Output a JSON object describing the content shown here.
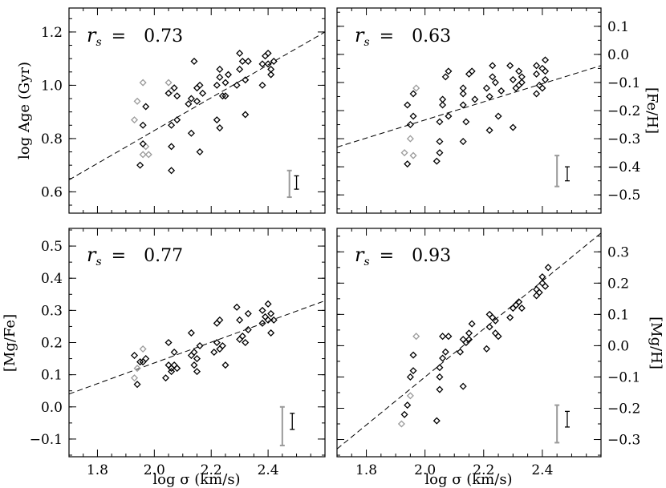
{
  "colors": {
    "primary_points": "#000000",
    "secondary_points": "#9a9a9a",
    "fit_line": "#000000",
    "error_bar_gray": "#9a9a9a"
  },
  "shared": {
    "x_axis_label": "log σ (km/s)",
    "x_ticks": [
      "1.8",
      "2.0",
      "2.2",
      "2.4"
    ],
    "xlim": [
      1.7,
      2.6
    ]
  },
  "chart_data": [
    {
      "type": "scatter",
      "id": "age",
      "rs_symbol": "r",
      "rs_sub": "s",
      "rs_eq": "=",
      "rs_value": "0.73",
      "ylabel_left": "log Age (Gyr)",
      "ylim": [
        0.52,
        1.29
      ],
      "y_ticks": [
        0.6,
        0.8,
        1.0,
        1.2
      ],
      "y_tick_labels": [
        "0.6",
        "0.8",
        "1.0",
        "1.2"
      ],
      "fit": {
        "x0": 1.7,
        "y0": 0.645,
        "x1": 2.6,
        "y1": 1.2
      },
      "gray_points": [
        [
          1.93,
          0.87
        ],
        [
          1.94,
          0.94
        ],
        [
          1.96,
          1.01
        ],
        [
          1.96,
          0.74
        ],
        [
          1.97,
          0.77
        ],
        [
          1.98,
          0.74
        ],
        [
          2.05,
          1.01
        ],
        [
          2.06,
          0.98
        ]
      ],
      "points": [
        [
          1.95,
          0.7
        ],
        [
          1.96,
          0.78
        ],
        [
          1.96,
          0.85
        ],
        [
          1.97,
          0.92
        ],
        [
          2.05,
          0.97
        ],
        [
          2.06,
          0.85
        ],
        [
          2.06,
          0.77
        ],
        [
          2.06,
          0.68
        ],
        [
          2.07,
          0.99
        ],
        [
          2.08,
          0.87
        ],
        [
          2.08,
          0.96
        ],
        [
          2.12,
          0.93
        ],
        [
          2.13,
          0.82
        ],
        [
          2.13,
          0.95
        ],
        [
          2.14,
          1.09
        ],
        [
          2.15,
          0.94
        ],
        [
          2.15,
          0.99
        ],
        [
          2.16,
          0.75
        ],
        [
          2.16,
          1.0
        ],
        [
          2.17,
          0.97
        ],
        [
          2.22,
          1.0
        ],
        [
          2.22,
          0.87
        ],
        [
          2.23,
          0.84
        ],
        [
          2.23,
          1.03
        ],
        [
          2.23,
          1.06
        ],
        [
          2.24,
          0.96
        ],
        [
          2.25,
          1.01
        ],
        [
          2.25,
          0.96
        ],
        [
          2.26,
          1.04
        ],
        [
          2.29,
          1.0
        ],
        [
          2.3,
          1.06
        ],
        [
          2.3,
          1.12
        ],
        [
          2.31,
          1.09
        ],
        [
          2.32,
          1.02
        ],
        [
          2.32,
          0.89
        ],
        [
          2.33,
          1.09
        ],
        [
          2.38,
          1.0
        ],
        [
          2.38,
          1.08
        ],
        [
          2.39,
          1.11
        ],
        [
          2.4,
          1.12
        ],
        [
          2.4,
          1.08
        ],
        [
          2.41,
          1.04
        ],
        [
          2.41,
          1.06
        ],
        [
          2.42,
          1.09
        ]
      ],
      "errorbars": [
        {
          "x": 2.475,
          "lo": 0.58,
          "hi": 0.68,
          "style": "gray"
        },
        {
          "x": 2.5,
          "lo": 0.61,
          "hi": 0.66,
          "style": "black"
        }
      ]
    },
    {
      "type": "scatter",
      "id": "feh",
      "rs_symbol": "r",
      "rs_sub": "s",
      "rs_eq": "=",
      "rs_value": "0.63",
      "ylabel_right": "[Fe/H]",
      "ylim": [
        -0.565,
        0.165
      ],
      "y_ticks": [
        -0.5,
        -0.4,
        -0.3,
        -0.2,
        -0.1,
        0.0,
        0.1
      ],
      "y_tick_labels": [
        "−0.5",
        "−0.4",
        "−0.3",
        "−0.2",
        "−0.1",
        "0.0",
        "0.1"
      ],
      "fit": {
        "x0": 1.7,
        "y0": -0.33,
        "x1": 2.6,
        "y1": -0.04
      },
      "gray_points": [
        [
          1.93,
          -0.35
        ],
        [
          1.95,
          -0.3
        ],
        [
          1.96,
          -0.36
        ],
        [
          1.97,
          -0.12
        ]
      ],
      "points": [
        [
          1.94,
          -0.39
        ],
        [
          1.94,
          -0.18
        ],
        [
          1.95,
          -0.25
        ],
        [
          1.96,
          -0.22
        ],
        [
          1.96,
          -0.14
        ],
        [
          2.04,
          -0.38
        ],
        [
          2.05,
          -0.31
        ],
        [
          2.05,
          -0.35
        ],
        [
          2.05,
          -0.24
        ],
        [
          2.06,
          -0.16
        ],
        [
          2.06,
          -0.18
        ],
        [
          2.07,
          -0.08
        ],
        [
          2.08,
          -0.06
        ],
        [
          2.08,
          -0.22
        ],
        [
          2.13,
          -0.18
        ],
        [
          2.13,
          -0.14
        ],
        [
          2.13,
          -0.12
        ],
        [
          2.13,
          -0.31
        ],
        [
          2.14,
          -0.24
        ],
        [
          2.15,
          -0.07
        ],
        [
          2.16,
          -0.06
        ],
        [
          2.17,
          -0.16
        ],
        [
          2.21,
          -0.12
        ],
        [
          2.22,
          -0.27
        ],
        [
          2.22,
          -0.15
        ],
        [
          2.23,
          -0.04
        ],
        [
          2.23,
          -0.08
        ],
        [
          2.24,
          -0.1
        ],
        [
          2.25,
          -0.22
        ],
        [
          2.26,
          -0.13
        ],
        [
          2.29,
          -0.04
        ],
        [
          2.3,
          -0.09
        ],
        [
          2.3,
          -0.26
        ],
        [
          2.31,
          -0.12
        ],
        [
          2.32,
          -0.11
        ],
        [
          2.32,
          -0.06
        ],
        [
          2.33,
          -0.08
        ],
        [
          2.33,
          -0.1
        ],
        [
          2.38,
          -0.04
        ],
        [
          2.38,
          -0.07
        ],
        [
          2.38,
          -0.14
        ],
        [
          2.39,
          -0.11
        ],
        [
          2.4,
          -0.05
        ],
        [
          2.4,
          -0.12
        ],
        [
          2.41,
          -0.02
        ],
        [
          2.41,
          -0.06
        ],
        [
          2.41,
          -0.09
        ]
      ],
      "errorbars": [
        {
          "x": 2.45,
          "lo": -0.47,
          "hi": -0.36,
          "style": "gray"
        },
        {
          "x": 2.485,
          "lo": -0.45,
          "hi": -0.4,
          "style": "black"
        }
      ]
    },
    {
      "type": "scatter",
      "id": "mgfe",
      "rs_symbol": "r",
      "rs_sub": "s",
      "rs_eq": "=",
      "rs_value": "0.77",
      "ylabel_left": "[Mg/Fe]",
      "ylim": [
        -0.155,
        0.555
      ],
      "y_ticks": [
        -0.1,
        0.0,
        0.1,
        0.2,
        0.3,
        0.4,
        0.5
      ],
      "y_tick_labels": [
        "−0.1",
        "0.0",
        "0.1",
        "0.2",
        "0.3",
        "0.4",
        "0.5"
      ],
      "fit": {
        "x0": 1.7,
        "y0": 0.04,
        "x1": 2.6,
        "y1": 0.33
      },
      "gray_points": [
        [
          1.93,
          0.09
        ],
        [
          1.94,
          0.12
        ],
        [
          1.96,
          0.18
        ]
      ],
      "points": [
        [
          1.93,
          0.16
        ],
        [
          1.94,
          0.07
        ],
        [
          1.95,
          0.14
        ],
        [
          1.96,
          0.14
        ],
        [
          1.97,
          0.15
        ],
        [
          2.04,
          0.09
        ],
        [
          2.05,
          0.2
        ],
        [
          2.05,
          0.13
        ],
        [
          2.06,
          0.12
        ],
        [
          2.06,
          0.11
        ],
        [
          2.07,
          0.17
        ],
        [
          2.07,
          0.13
        ],
        [
          2.08,
          0.12
        ],
        [
          2.13,
          0.23
        ],
        [
          2.13,
          0.16
        ],
        [
          2.14,
          0.17
        ],
        [
          2.14,
          0.13
        ],
        [
          2.15,
          0.15
        ],
        [
          2.15,
          0.11
        ],
        [
          2.16,
          0.19
        ],
        [
          2.21,
          0.17
        ],
        [
          2.22,
          0.26
        ],
        [
          2.22,
          0.2
        ],
        [
          2.23,
          0.18
        ],
        [
          2.23,
          0.27
        ],
        [
          2.24,
          0.19
        ],
        [
          2.25,
          0.13
        ],
        [
          2.29,
          0.31
        ],
        [
          2.3,
          0.21
        ],
        [
          2.3,
          0.27
        ],
        [
          2.31,
          0.22
        ],
        [
          2.32,
          0.2
        ],
        [
          2.33,
          0.24
        ],
        [
          2.33,
          0.29
        ],
        [
          2.38,
          0.26
        ],
        [
          2.38,
          0.3
        ],
        [
          2.39,
          0.28
        ],
        [
          2.4,
          0.32
        ],
        [
          2.4,
          0.27
        ],
        [
          2.41,
          0.23
        ],
        [
          2.41,
          0.29
        ],
        [
          2.42,
          0.27
        ]
      ],
      "errorbars": [
        {
          "x": 2.45,
          "lo": -0.12,
          "hi": 0.0,
          "style": "gray"
        },
        {
          "x": 2.485,
          "lo": -0.07,
          "hi": -0.02,
          "style": "black"
        }
      ]
    },
    {
      "type": "scatter",
      "id": "mgh",
      "rs_symbol": "r",
      "rs_sub": "s",
      "rs_eq": "=",
      "rs_value": "0.93",
      "ylabel_right": "[Mg/H]",
      "ylim": [
        -0.355,
        0.375
      ],
      "y_ticks": [
        -0.3,
        -0.2,
        -0.1,
        0.0,
        0.1,
        0.2,
        0.3
      ],
      "y_tick_labels": [
        "−0.3",
        "−0.2",
        "−0.1",
        "0.0",
        "0.1",
        "0.2",
        "0.3"
      ],
      "fit": {
        "x0": 1.7,
        "y0": -0.33,
        "x1": 2.6,
        "y1": 0.36
      },
      "gray_points": [
        [
          1.92,
          -0.25
        ],
        [
          1.95,
          -0.16
        ],
        [
          1.97,
          0.03
        ]
      ],
      "points": [
        [
          1.93,
          -0.22
        ],
        [
          1.94,
          -0.19
        ],
        [
          1.95,
          -0.1
        ],
        [
          1.96,
          -0.08
        ],
        [
          1.96,
          -0.03
        ],
        [
          2.04,
          -0.24
        ],
        [
          2.05,
          -0.14
        ],
        [
          2.05,
          -0.1
        ],
        [
          2.05,
          -0.07
        ],
        [
          2.06,
          -0.04
        ],
        [
          2.06,
          0.03
        ],
        [
          2.07,
          -0.02
        ],
        [
          2.08,
          0.03
        ],
        [
          2.12,
          -0.02
        ],
        [
          2.13,
          -0.13
        ],
        [
          2.13,
          0.02
        ],
        [
          2.14,
          0.01
        ],
        [
          2.15,
          0.04
        ],
        [
          2.15,
          0.02
        ],
        [
          2.16,
          0.07
        ],
        [
          2.21,
          -0.01
        ],
        [
          2.22,
          0.06
        ],
        [
          2.22,
          0.1
        ],
        [
          2.23,
          0.09
        ],
        [
          2.24,
          0.04
        ],
        [
          2.24,
          0.08
        ],
        [
          2.25,
          0.03
        ],
        [
          2.29,
          0.09
        ],
        [
          2.3,
          0.12
        ],
        [
          2.31,
          0.13
        ],
        [
          2.31,
          0.13
        ],
        [
          2.32,
          0.14
        ],
        [
          2.33,
          0.12
        ],
        [
          2.38,
          0.16
        ],
        [
          2.38,
          0.18
        ],
        [
          2.39,
          0.17
        ],
        [
          2.4,
          0.2
        ],
        [
          2.4,
          0.22
        ],
        [
          2.41,
          0.19
        ],
        [
          2.42,
          0.25
        ]
      ],
      "errorbars": [
        {
          "x": 2.45,
          "lo": -0.31,
          "hi": -0.19,
          "style": "gray"
        },
        {
          "x": 2.485,
          "lo": -0.26,
          "hi": -0.21,
          "style": "black"
        }
      ]
    }
  ]
}
